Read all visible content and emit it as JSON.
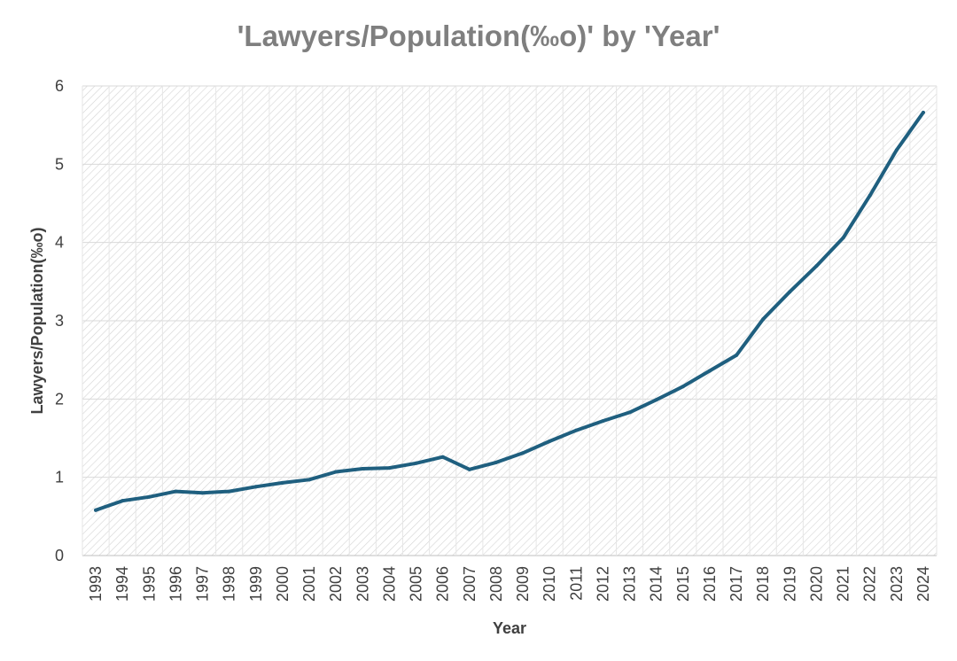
{
  "chart_data": {
    "type": "line",
    "title": "'Lawyers/Population(‰o)' by 'Year'",
    "xlabel": "Year",
    "ylabel": "Lawyers/Population(‰o)",
    "ylim": [
      0,
      6
    ],
    "yticks": [
      "0",
      "1",
      "2",
      "3",
      "4",
      "5",
      "6"
    ],
    "grid": true,
    "categories": [
      "1993",
      "1994",
      "1995",
      "1996",
      "1997",
      "1998",
      "1999",
      "2000",
      "2001",
      "2002",
      "2003",
      "2004",
      "2005",
      "2006",
      "2007",
      "2008",
      "2009",
      "2010",
      "2011",
      "2012",
      "2013",
      "2014",
      "2015",
      "2016",
      "2017",
      "2018",
      "2019",
      "2020",
      "2021",
      "2022",
      "2023",
      "2024"
    ],
    "series": [
      {
        "name": "Lawyers/Population(‰o)",
        "color": "#1f5f7f",
        "values": [
          0.58,
          0.7,
          0.75,
          0.82,
          0.8,
          0.82,
          0.88,
          0.93,
          0.97,
          1.07,
          1.11,
          1.12,
          1.18,
          1.26,
          1.1,
          1.19,
          1.31,
          1.46,
          1.6,
          1.72,
          1.83,
          1.99,
          2.16,
          2.36,
          2.56,
          3.02,
          3.37,
          3.7,
          4.06,
          4.6,
          5.18,
          5.66
        ]
      }
    ]
  }
}
